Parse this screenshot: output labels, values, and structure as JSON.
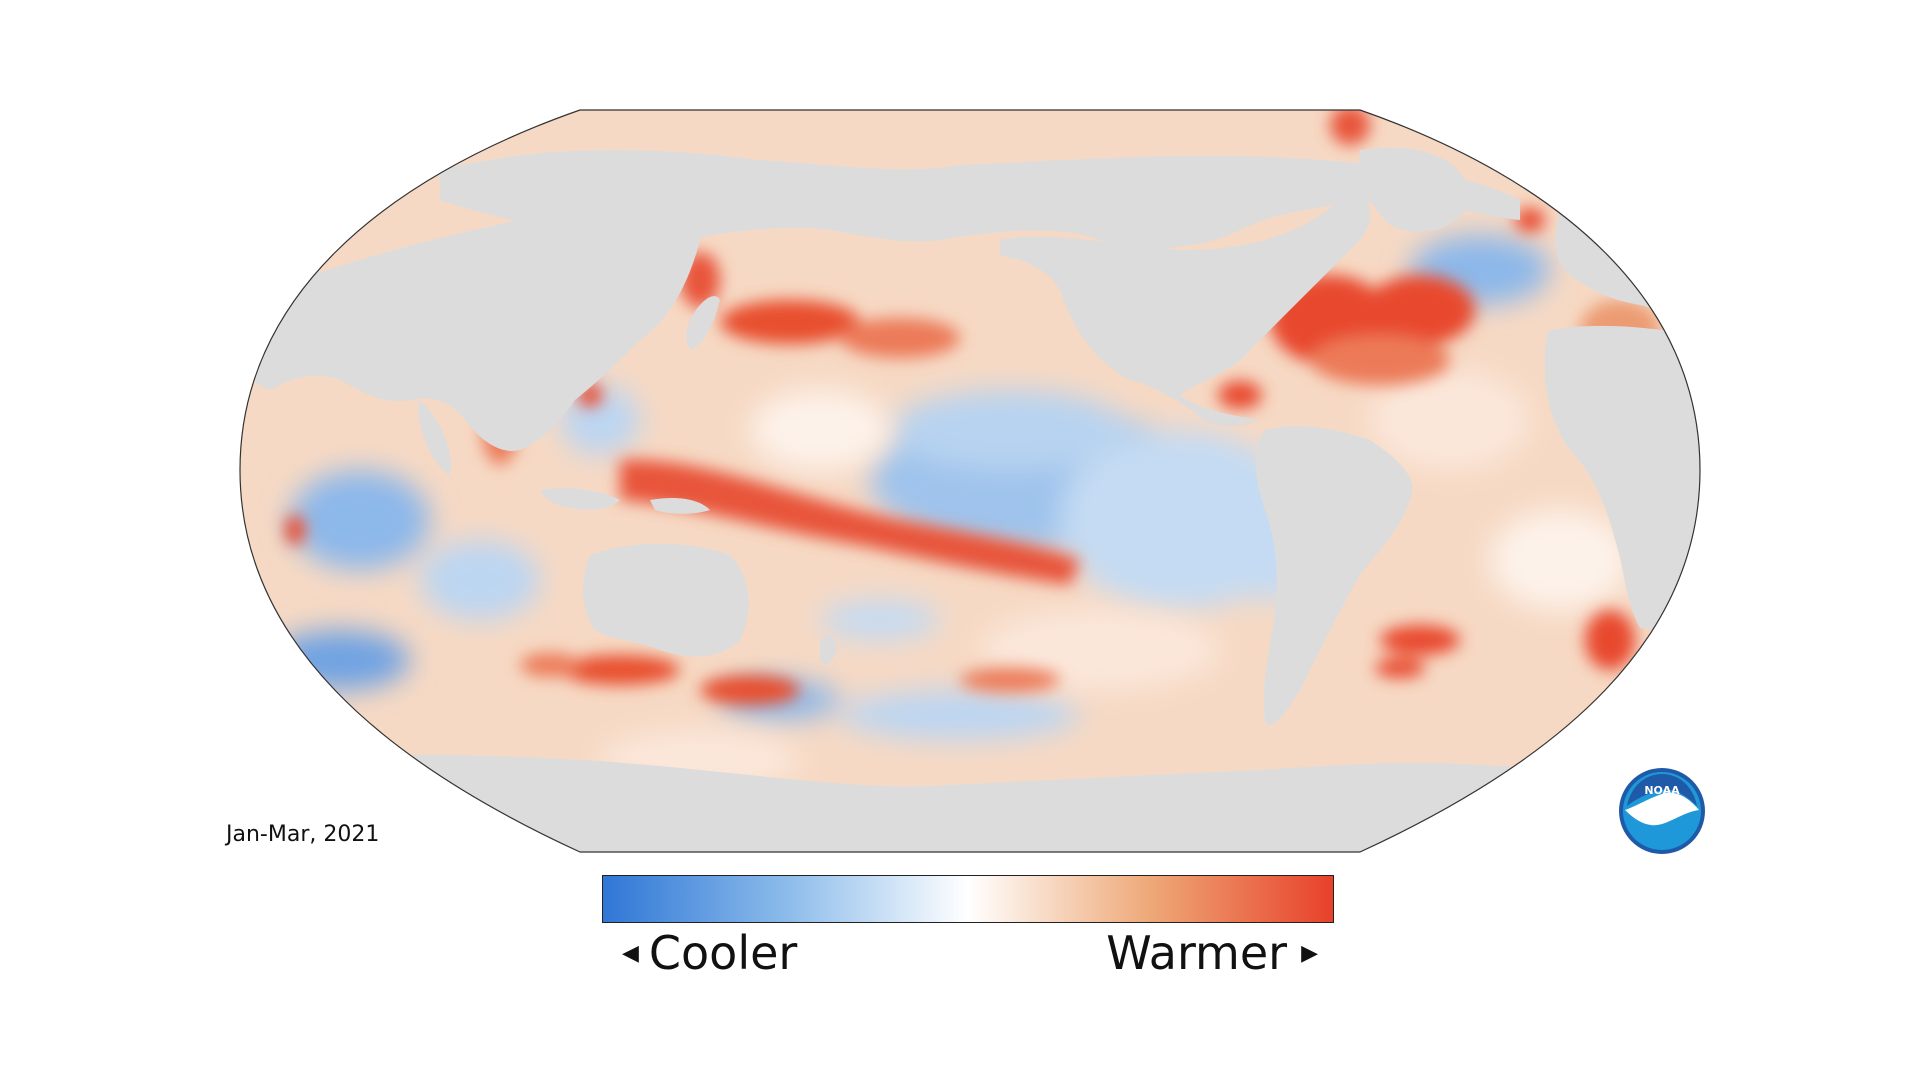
{
  "period_label": "Jan-Mar, 2021",
  "legend": {
    "low_label": "Cooler",
    "high_label": "Warmer",
    "low_color": "#2f76d6",
    "mid_color": "#ffffff",
    "high_color": "#e8402a"
  },
  "map": {
    "projection": "Robinson (Pacific-centered)",
    "land_color": "#dcdcdc",
    "ocean_base_color": "#f6d9c4"
  },
  "logo": {
    "text": "NOAA",
    "outer_color": "#1f5aa8",
    "inner_color": "#1e98d8"
  }
}
